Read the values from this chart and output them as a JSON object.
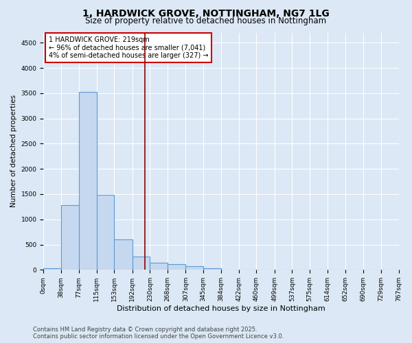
{
  "title_line1": "1, HARDWICK GROVE, NOTTINGHAM, NG7 1LG",
  "title_line2": "Size of property relative to detached houses in Nottingham",
  "xlabel": "Distribution of detached houses by size in Nottingham",
  "ylabel": "Number of detached properties",
  "bin_edges": [
    0,
    38,
    77,
    115,
    153,
    192,
    230,
    268,
    307,
    345,
    384,
    422,
    460,
    499,
    537,
    575,
    614,
    652,
    690,
    729,
    767
  ],
  "bar_heights": [
    30,
    1280,
    3530,
    1490,
    600,
    260,
    140,
    110,
    70,
    30,
    5,
    0,
    0,
    0,
    0,
    0,
    0,
    0,
    0,
    0
  ],
  "bar_color": "#c5d8ef",
  "bar_edge_color": "#5b9bd5",
  "subject_size": 219,
  "subject_line_color": "#8b0000",
  "annotation_line1": "1 HARDWICK GROVE: 219sqm",
  "annotation_line2": "← 96% of detached houses are smaller (7,041)",
  "annotation_line3": "4% of semi-detached houses are larger (327) →",
  "annotation_box_facecolor": "#ffffff",
  "annotation_box_edgecolor": "#cc0000",
  "ylim_max": 4700,
  "yticks": [
    0,
    500,
    1000,
    1500,
    2000,
    2500,
    3000,
    3500,
    4000,
    4500
  ],
  "background_color": "#dce8f5",
  "grid_color": "#ffffff",
  "footer_line1": "Contains HM Land Registry data © Crown copyright and database right 2025.",
  "footer_line2": "Contains public sector information licensed under the Open Government Licence v3.0.",
  "title_fontsize": 10,
  "subtitle_fontsize": 8.5,
  "ylabel_fontsize": 7.5,
  "xlabel_fontsize": 8,
  "tick_fontsize": 6.5,
  "annotation_fontsize": 7,
  "footer_fontsize": 6
}
